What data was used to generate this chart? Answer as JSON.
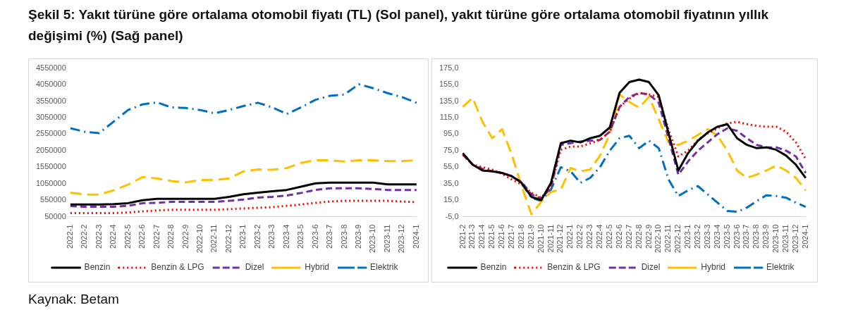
{
  "chart_data": [
    {
      "type": "line",
      "title": "Şekil 5: Yakıt türüne göre ortalama otomobil fiyatı (TL) (Sol panel), yakıt türüne göre ortalama otomobil fiyatının yıllık değişimi (%) (Sağ panel)",
      "annotations": [
        "Kaynak: Betam"
      ],
      "categories": [
        "2022-1",
        "2022-2",
        "2022-3",
        "2022-4",
        "2022-5",
        "2022-6",
        "2022-7",
        "2022-8",
        "2022-9",
        "2022-10",
        "2022-11",
        "2022-12",
        "2023-1",
        "2023-2",
        "2023-3",
        "2023-4",
        "2023-5",
        "2023-6",
        "2023-7",
        "2023-8",
        "2023-9",
        "2023-10",
        "2023-11",
        "2023-12",
        "2024-1"
      ],
      "ylim": [
        50000,
        4550000
      ],
      "yticks": [
        50000,
        550000,
        1050000,
        1550000,
        2050000,
        2550000,
        3050000,
        3550000,
        4050000,
        4550000
      ],
      "grid": false,
      "legend": "bottom",
      "marker": "none",
      "series": [
        {
          "name": "Benzin",
          "color": "#000000",
          "line_style": "solid",
          "values": [
            420000,
            420000,
            420000,
            430000,
            460000,
            550000,
            590000,
            590000,
            590000,
            590000,
            590000,
            650000,
            730000,
            780000,
            820000,
            860000,
            960000,
            1060000,
            1080000,
            1080000,
            1080000,
            1080000,
            1030000,
            1030000,
            1030000
          ]
        },
        {
          "name": "Benzin & LPG",
          "color": "#ff0000",
          "line_style": "dotted",
          "values": [
            160000,
            160000,
            160000,
            160000,
            180000,
            210000,
            240000,
            260000,
            260000,
            260000,
            260000,
            280000,
            300000,
            320000,
            340000,
            380000,
            420000,
            470000,
            510000,
            530000,
            530000,
            530000,
            530000,
            510000,
            490000
          ]
        },
        {
          "name": "Dizel",
          "color": "#7030a0",
          "line_style": "dashed",
          "values": [
            370000,
            350000,
            350000,
            350000,
            380000,
            460000,
            470000,
            500000,
            500000,
            500000,
            500000,
            530000,
            570000,
            630000,
            650000,
            690000,
            770000,
            860000,
            910000,
            910000,
            910000,
            890000,
            860000,
            860000,
            860000
          ]
        },
        {
          "name": "Hybrid",
          "color": "#ffc000",
          "line_style": "longdash",
          "values": [
            780000,
            720000,
            720000,
            850000,
            1020000,
            1250000,
            1210000,
            1130000,
            1090000,
            1160000,
            1160000,
            1210000,
            1420000,
            1480000,
            1470000,
            1520000,
            1680000,
            1760000,
            1760000,
            1720000,
            1760000,
            1760000,
            1730000,
            1730000,
            1760000
          ]
        },
        {
          "name": "Elektrik",
          "color": "#0070c0",
          "line_style": "dashdot",
          "values": [
            2730000,
            2620000,
            2580000,
            2930000,
            3280000,
            3450000,
            3510000,
            3360000,
            3340000,
            3280000,
            3180000,
            3280000,
            3400000,
            3500000,
            3360000,
            3160000,
            3360000,
            3590000,
            3710000,
            3750000,
            4060000,
            3940000,
            3790000,
            3670000,
            3500000
          ]
        }
      ]
    },
    {
      "type": "line",
      "categories": [
        "2021-2",
        "2021-3",
        "2021-4",
        "2021-5",
        "2021-6",
        "2021-7",
        "2021-8",
        "2021-9",
        "2021-10",
        "2021-11",
        "2021-12",
        "2022-1",
        "2022-2",
        "2022-3",
        "2022-4",
        "2022-5",
        "2022-6",
        "2022-7",
        "2022-8",
        "2022-9",
        "2022-10",
        "2022-11",
        "2022-12",
        "2023-1",
        "2023-2",
        "2023-3",
        "2023-4",
        "2023-5",
        "2023-6",
        "2023-7",
        "2023-8",
        "2023-9",
        "2023-10",
        "2023-11",
        "2023-12",
        "2024-1"
      ],
      "ylim": [
        -5,
        175
      ],
      "yticks": [
        {
          "value": -5,
          "label": "-5,0"
        },
        {
          "value": 15,
          "label": "15,0"
        },
        {
          "value": 35,
          "label": "35,0"
        },
        {
          "value": 55,
          "label": "55,0"
        },
        {
          "value": 75,
          "label": "75,0"
        },
        {
          "value": 95,
          "label": "95,0"
        },
        {
          "value": 115,
          "label": "115,0"
        },
        {
          "value": 135,
          "label": "135,0"
        },
        {
          "value": 155,
          "label": "155,0"
        },
        {
          "value": 175,
          "label": "175,0"
        }
      ],
      "grid": false,
      "legend": "bottom",
      "marker": "none",
      "series": [
        {
          "name": "Benzin",
          "color": "#000000",
          "line_style": "solid",
          "values": [
            72,
            58,
            51,
            50,
            48,
            44,
            36,
            19,
            15,
            36,
            84,
            87,
            85,
            90,
            93,
            103,
            145,
            158,
            161,
            158,
            142,
            96,
            51,
            72,
            87,
            97,
            104,
            107,
            90,
            82,
            78,
            79,
            76,
            69,
            58,
            42
          ]
        },
        {
          "name": "Benzin & LPG",
          "color": "#ff0000",
          "line_style": "dotted",
          "values": [
            70,
            58,
            55,
            52,
            47,
            40,
            34,
            24,
            18,
            32,
            76,
            80,
            80,
            84,
            88,
            98,
            128,
            138,
            145,
            143,
            140,
            100,
            68,
            75,
            88,
            96,
            102,
            108,
            110,
            107,
            105,
            104,
            104,
            98,
            85,
            65
          ]
        },
        {
          "name": "Dizel",
          "color": "#7030a0",
          "line_style": "dashed",
          "values": [
            70,
            58,
            53,
            50,
            48,
            44,
            37,
            22,
            17,
            30,
            82,
            84,
            86,
            87,
            88,
            98,
            128,
            140,
            145,
            143,
            133,
            90,
            46,
            62,
            75,
            85,
            95,
            102,
            99,
            90,
            82,
            79,
            79,
            75,
            68,
            48
          ]
        },
        {
          "name": "Hybrid",
          "color": "#ffc000",
          "line_style": "longdash",
          "values": [
            128,
            139,
            110,
            90,
            101,
            70,
            32,
            -2,
            13,
            25,
            28,
            54,
            50,
            52,
            69,
            95,
            143,
            134,
            127,
            140,
            113,
            85,
            82,
            87,
            94,
            101,
            93,
            75,
            51,
            42,
            46,
            51,
            57,
            51,
            42,
            27
          ]
        },
        {
          "name": "Elektrik",
          "color": "#0070c0",
          "line_style": "dashdot",
          "values": [
            null,
            null,
            null,
            null,
            null,
            null,
            35,
            18,
            14,
            28,
            55,
            50,
            36,
            42,
            55,
            75,
            90,
            93,
            78,
            87,
            78,
            40,
            20,
            27,
            32,
            22,
            12,
            2,
            1,
            6,
            14,
            21,
            20,
            18,
            12,
            7
          ]
        }
      ]
    }
  ]
}
